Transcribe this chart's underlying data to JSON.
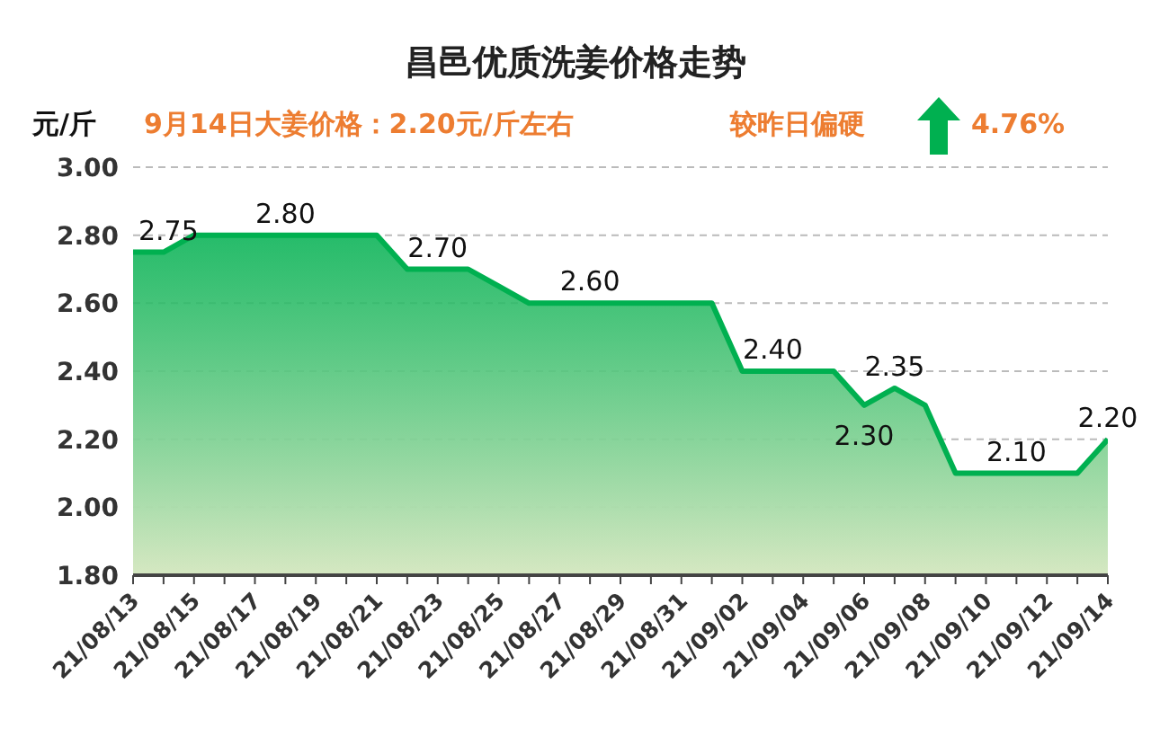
{
  "chart_data": {
    "type": "area",
    "title": "昌邑优质洗姜价格走势",
    "ylabel": "元/斤",
    "annotations": [
      "9月14日大姜价格：2.20元/斤左右",
      "较昨日偏硬",
      "4.76%"
    ],
    "x": [
      "--08-13",
      "--08-14",
      "--08-15",
      "--08-16",
      "--08-17",
      "--08-18",
      "--08-19",
      "--08-20",
      "--08-21",
      "--08-22",
      "--08-23",
      "--08-24",
      "--08-25",
      "--08-26",
      "--08-27",
      "--08-28",
      "--08-29",
      "--08-30",
      "--08-31",
      "--09-01",
      "--09-02",
      "--09-03",
      "--09-04",
      "--09-05",
      "--09-06",
      "--09-07",
      "--09-08",
      "--09-09",
      "--09-10",
      "--09-11",
      "--09-12",
      "--09-13",
      "--09-14"
    ],
    "series": [
      {
        "color": "#00b050",
        "values": [
          2.75,
          2.75,
          2.8,
          2.8,
          2.8,
          2.8,
          2.8,
          2.8,
          2.8,
          2.7,
          2.7,
          2.7,
          2.65,
          2.6,
          2.6,
          2.6,
          2.6,
          2.6,
          2.6,
          2.6,
          2.4,
          2.4,
          2.4,
          2.4,
          2.3,
          2.35,
          2.3,
          2.1,
          2.1,
          2.1,
          2.1,
          2.1,
          2.2
        ],
        "value_labels": [
          "2.75",
          null,
          null,
          null,
          null,
          "2.80",
          null,
          null,
          null,
          null,
          "2.70",
          null,
          null,
          null,
          null,
          "2.60",
          null,
          null,
          null,
          null,
          null,
          "2.40",
          null,
          null,
          "2.30",
          "2.35",
          null,
          null,
          null,
          "2.10",
          null,
          null,
          "2.20"
        ]
      }
    ],
    "xlim": [
      "--08-13",
      "--09-14"
    ],
    "xticks": [
      {
        "value": "--08-13",
        "label": "21/08/13"
      },
      {
        "value": "--08-14",
        "label": null
      },
      {
        "value": "--08-15",
        "label": "21/08/15"
      },
      {
        "value": "--08-16",
        "label": null
      },
      {
        "value": "--08-17",
        "label": "21/08/17"
      },
      {
        "value": "--08-18",
        "label": null
      },
      {
        "value": "--08-19",
        "label": "21/08/19"
      },
      {
        "value": "--08-20",
        "label": null
      },
      {
        "value": "--08-21",
        "label": "21/08/21"
      },
      {
        "value": "--08-22",
        "label": null
      },
      {
        "value": "--08-23",
        "label": "21/08/23"
      },
      {
        "value": "--08-24",
        "label": null
      },
      {
        "value": "--08-25",
        "label": "21/08/25"
      },
      {
        "value": "--08-26",
        "label": null
      },
      {
        "value": "--08-27",
        "label": "21/08/27"
      },
      {
        "value": "--08-28",
        "label": null
      },
      {
        "value": "--08-29",
        "label": "21/08/29"
      },
      {
        "value": "--08-30",
        "label": null
      },
      {
        "value": "--08-31",
        "label": "21/08/31"
      },
      {
        "value": "--09-01",
        "label": null
      },
      {
        "value": "--09-02",
        "label": "21/09/02"
      },
      {
        "value": "--09-03",
        "label": null
      },
      {
        "value": "--09-04",
        "label": "21/09/04"
      },
      {
        "value": "--09-05",
        "label": null
      },
      {
        "value": "--09-06",
        "label": "21/09/06"
      },
      {
        "value": "--09-07",
        "label": null
      },
      {
        "value": "--09-08",
        "label": "21/09/08"
      },
      {
        "value": "--09-09",
        "label": null
      },
      {
        "value": "--09-10",
        "label": "21/09/10"
      },
      {
        "value": "--09-11",
        "label": null
      },
      {
        "value": "--09-12",
        "label": "21/09/12"
      },
      {
        "value": "--09-13",
        "label": null
      },
      {
        "value": "--09-14",
        "label": "21/09/14"
      }
    ],
    "ylim": [
      1.8,
      3.0
    ],
    "yticks": [
      {
        "value": 1.8,
        "label": "1.80"
      },
      {
        "value": 2.0,
        "label": "2.00"
      },
      {
        "value": 2.2,
        "label": "2.20"
      },
      {
        "value": 2.4,
        "label": "2.40"
      },
      {
        "value": 2.6,
        "label": "2.60"
      },
      {
        "value": 2.8,
        "label": "2.80"
      },
      {
        "value": 3.0,
        "label": "3.00"
      }
    ],
    "grid": "y"
  }
}
